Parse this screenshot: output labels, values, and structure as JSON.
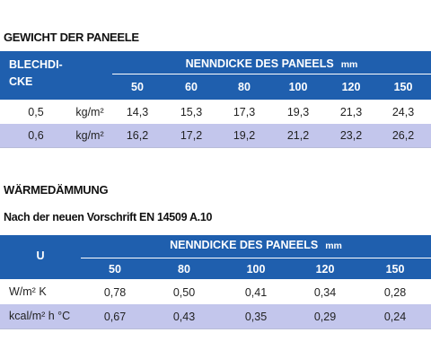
{
  "sections": [
    {
      "title": "GEWICHT DER PANEELE",
      "table": {
        "corner": [
          "BLECHDI-",
          "CKE"
        ],
        "heading": "NENNDICKE DES PANEELS",
        "unit": "mm",
        "columns": [
          "50",
          "60",
          "80",
          "100",
          "120",
          "150"
        ],
        "rows": [
          {
            "label": "0,5",
            "unit": "kg/m²",
            "cells": [
              "14,3",
              "15,3",
              "17,3",
              "19,3",
              "21,3",
              "24,3"
            ]
          },
          {
            "label": "0,6",
            "unit": "kg/m²",
            "cells": [
              "16,2",
              "17,2",
              "19,2",
              "21,2",
              "23,2",
              "26,2"
            ]
          }
        ]
      }
    },
    {
      "title": "WÄRMEDÄMMUNG",
      "subtitle": "Nach der neuen Vorschrift EN 14509 A.10",
      "table": {
        "corner": [
          "U"
        ],
        "heading": "NENNDICKE DES PANEELS",
        "unit": "mm",
        "columns": [
          "50",
          "80",
          "100",
          "120",
          "150"
        ],
        "rows": [
          {
            "label": "W/m² K",
            "cells": [
              "0,78",
              "0,50",
              "0,41",
              "0,34",
              "0,28"
            ]
          },
          {
            "label": "kcal/m² h °C",
            "cells": [
              "0,67",
              "0,43",
              "0,35",
              "0,29",
              "0,24"
            ]
          }
        ]
      }
    }
  ]
}
